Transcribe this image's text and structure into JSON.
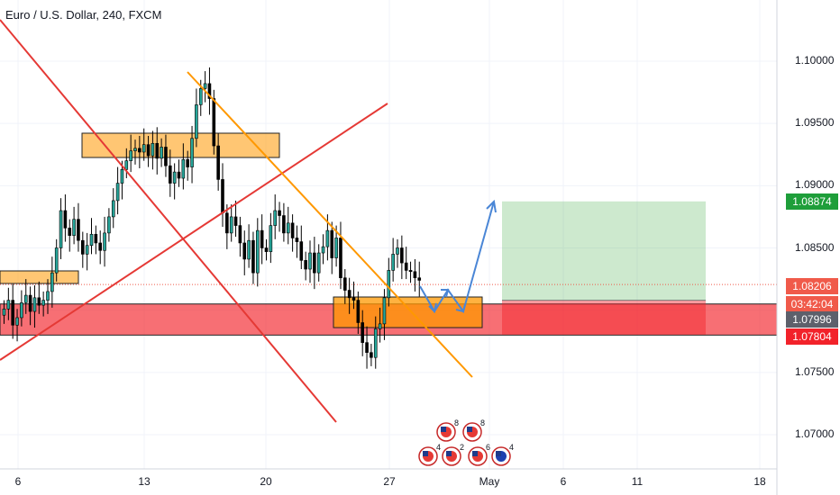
{
  "chart_data": {
    "type": "candlestick",
    "title": "Euro / U.S. Dollar, 240, FXCM",
    "y_axis": {
      "ticks": [
        "1.10000",
        "1.09500",
        "1.09000",
        "1.08500",
        "1.07500",
        "1.07000"
      ],
      "ylim": [
        1.068,
        1.104
      ]
    },
    "x_axis": {
      "ticks": [
        "6",
        "13",
        "20",
        "27",
        "May",
        "6",
        "11",
        "18"
      ]
    },
    "price_tags": [
      {
        "label": "1.08874",
        "color": "#1e9e3a"
      },
      {
        "label": "1.08206",
        "color": "#f05a4a"
      },
      {
        "label": "03:42:04",
        "color": "#f05a4a"
      },
      {
        "label": "1.07996",
        "color": "#5d606b"
      },
      {
        "label": "1.07804",
        "color": "#f2222a"
      }
    ],
    "ohlc_close": [
      1.0801,
      1.0808,
      1.0788,
      1.0794,
      1.0806,
      1.0812,
      1.0799,
      1.081,
      1.0804,
      1.0808,
      1.0815,
      1.083,
      1.085,
      1.088,
      1.0866,
      1.086,
      1.0873,
      1.0856,
      1.0845,
      1.0852,
      1.0861,
      1.0854,
      1.0848,
      1.0862,
      1.0875,
      1.0888,
      1.0902,
      1.0913,
      1.092,
      1.0928,
      1.093,
      1.0927,
      1.0933,
      1.0924,
      1.0934,
      1.0922,
      1.0931,
      1.0916,
      1.0902,
      1.0911,
      1.0906,
      1.0921,
      1.0915,
      1.0938,
      1.0965,
      1.0978,
      1.0982,
      1.097,
      1.0932,
      1.0905,
      1.0878,
      1.0862,
      1.0875,
      1.0868,
      1.0854,
      1.0841,
      1.0856,
      1.083,
      1.0864,
      1.085,
      1.0847,
      1.0868,
      1.088,
      1.0876,
      1.0862,
      1.087,
      1.0858,
      1.0855,
      1.084,
      1.0833,
      1.0846,
      1.083,
      1.0846,
      1.0851,
      1.0864,
      1.0842,
      1.0858,
      1.0826,
      1.0816,
      1.081,
      1.0808,
      1.079,
      1.0774,
      1.0766,
      1.0762,
      1.0785,
      1.0789,
      1.081,
      1.0832,
      1.0845,
      1.085,
      1.0838,
      1.0832,
      1.0831,
      1.0826,
      1.0824
    ],
    "levels": {
      "support_zone": [
        1.078,
        1.0805
      ],
      "current_price": 1.08206,
      "target": 1.08874,
      "stop": 1.07804
    }
  },
  "event_icons": [
    {
      "name": "us-flag-icon",
      "count": "8"
    },
    {
      "name": "us-flag-icon",
      "count": "8"
    },
    {
      "name": "us-flag-icon",
      "count": "4"
    },
    {
      "name": "us-flag-icon",
      "count": "2"
    },
    {
      "name": "us-flag-icon",
      "count": "6"
    },
    {
      "name": "eu-flag-icon",
      "count": "4"
    }
  ]
}
